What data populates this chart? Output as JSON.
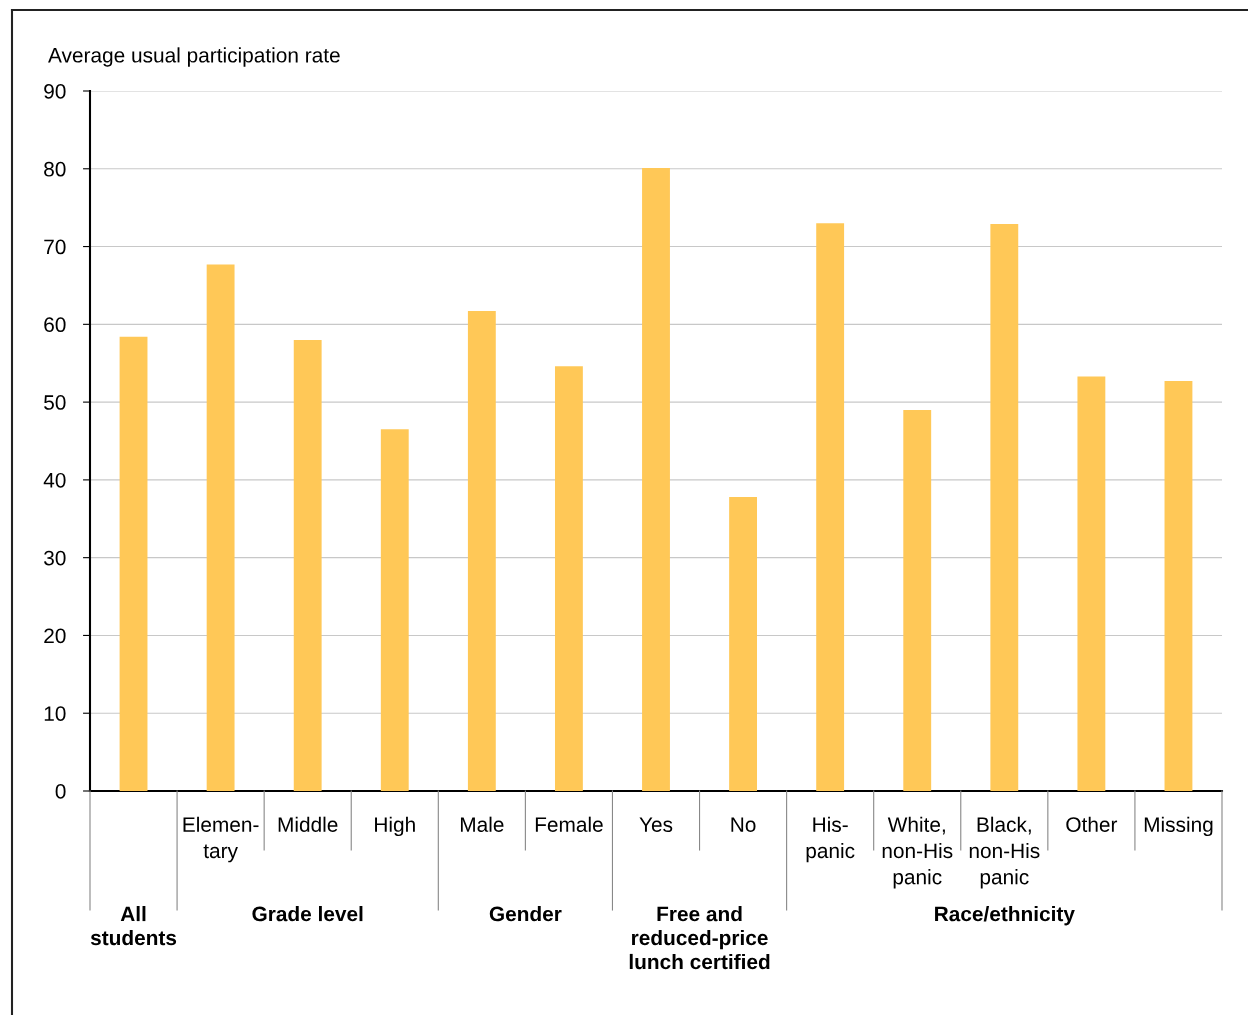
{
  "chart_data": {
    "type": "bar",
    "ylabel": "Average usual participation rate",
    "categories": [
      null,
      "Elemen-\ntary",
      "Middle",
      "High",
      "Male",
      "Female",
      "Yes",
      "No",
      "His-\npanic",
      "White,\nnon-His\npanic",
      "Black,\nnon-His\npanic",
      "Other",
      "Missing"
    ],
    "values": [
      58.4,
      67.7,
      58.0,
      46.5,
      61.7,
      54.6,
      80.1,
      37.8,
      73.0,
      49.0,
      72.9,
      53.3,
      52.7
    ],
    "color": "#ffc857",
    "ylim": [
      0,
      90
    ],
    "yticks": [
      0,
      10,
      20,
      30,
      40,
      50,
      60,
      70,
      80,
      90
    ],
    "grid": "y",
    "annotations": [
      "All\nstudents",
      "Grade level",
      "Gender",
      "Free and\nreduced-price\nlunch certified",
      "Race/ethnicity"
    ]
  }
}
